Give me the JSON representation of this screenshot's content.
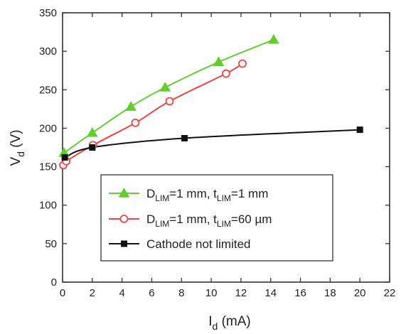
{
  "chart_data": {
    "type": "line",
    "xlabel": {
      "main": "I",
      "sub": "d",
      "rest": " (mA)"
    },
    "ylabel": {
      "main": "V",
      "sub": "d",
      "rest": " (V)"
    },
    "xlim": [
      0,
      22
    ],
    "ylim": [
      0,
      350
    ],
    "xticks": [
      0,
      2,
      4,
      6,
      8,
      10,
      12,
      14,
      16,
      18,
      20,
      22
    ],
    "yticks": [
      0,
      50,
      100,
      150,
      200,
      250,
      300,
      350
    ],
    "grid": false,
    "legend_position": "bottom-center",
    "series": [
      {
        "key": "green",
        "color": "#66cc33",
        "marker": "triangle-filled",
        "legend": [
          {
            "t": "D"
          },
          {
            "t": "LIM",
            "sub": true
          },
          {
            "t": "=1 mm, t"
          },
          {
            "t": "LIM",
            "sub": true
          },
          {
            "t": "=1 mm"
          }
        ],
        "x": [
          0.1,
          2.0,
          4.6,
          6.9,
          10.5,
          14.2
        ],
        "y": [
          168,
          194,
          228,
          253,
          286,
          315
        ]
      },
      {
        "key": "red",
        "color": "#ee4444",
        "marker": "circle-open",
        "legend": [
          {
            "t": "D"
          },
          {
            "t": "LIM",
            "sub": true
          },
          {
            "t": "=1 mm, t"
          },
          {
            "t": "LIM",
            "sub": true
          },
          {
            "t": "=60 µm"
          }
        ],
        "x": [
          0.05,
          0.25,
          2.05,
          4.9,
          7.2,
          11.0,
          12.1
        ],
        "y": [
          152,
          157,
          178,
          207,
          235,
          271,
          284
        ]
      },
      {
        "key": "black",
        "color": "#111111",
        "marker": "square-filled",
        "legend": [
          {
            "t": "Cathode not limited"
          }
        ],
        "x": [
          0.15,
          2.0,
          8.2,
          20.0
        ],
        "y": [
          162,
          175,
          187,
          198
        ]
      }
    ]
  }
}
